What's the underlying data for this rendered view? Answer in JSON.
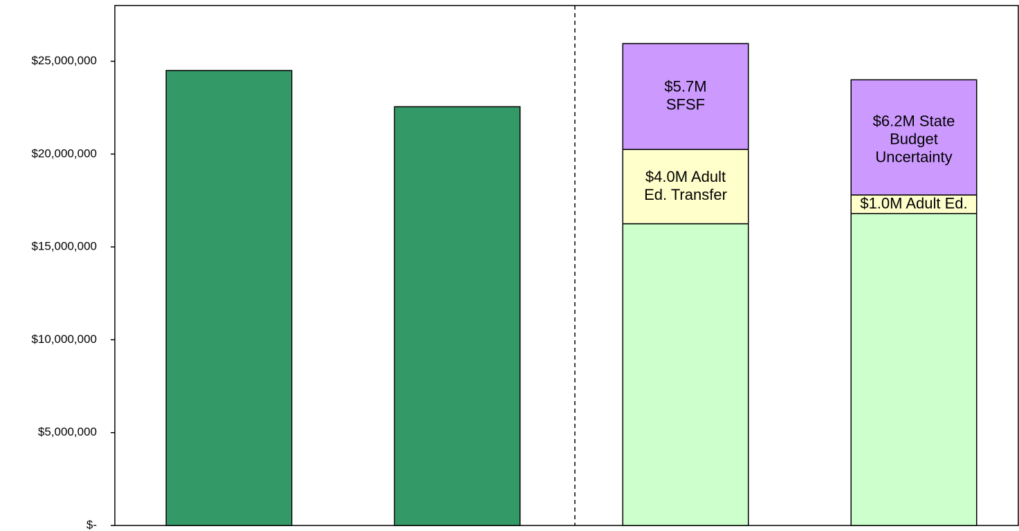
{
  "chart_data": {
    "type": "bar",
    "stacked": true,
    "categories": [
      null,
      null,
      null,
      null
    ],
    "series": [
      {
        "colors": [
          "#339966",
          "#339966",
          "#ccffcc",
          "#ccffcc"
        ],
        "values": [
          24500000,
          22550000,
          16250000,
          16800000
        ]
      },
      {
        "color": "#ffffcc",
        "values": [
          null,
          null,
          4000000,
          1000000
        ],
        "value_labels": [
          null,
          null,
          "$4.0M Adult\nEd. Transfer",
          "$1.0M Adult Ed."
        ]
      },
      {
        "color": "#cc99ff",
        "values": [
          null,
          null,
          5700000,
          6200000
        ],
        "value_labels": [
          null,
          null,
          "$5.7M\nSFSF",
          "$6.2M State\nBudget\nUncertainty"
        ]
      }
    ],
    "ylim": [
      0,
      28000000
    ],
    "yticks": [
      {
        "value": 0,
        "label": "$-"
      },
      {
        "value": 5000000,
        "label": "$5,000,000"
      },
      {
        "value": 10000000,
        "label": "$10,000,000"
      },
      {
        "value": 15000000,
        "label": "$15,000,000"
      },
      {
        "value": 20000000,
        "label": "$20,000,000"
      },
      {
        "value": 25000000,
        "label": "$25,000,000"
      }
    ],
    "grid": false
  }
}
